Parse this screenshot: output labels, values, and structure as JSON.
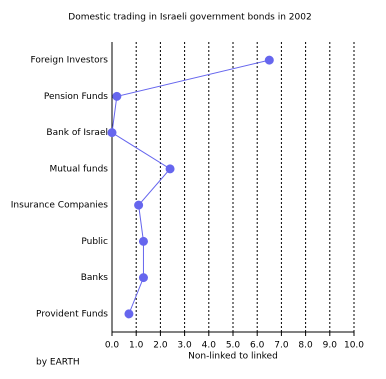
{
  "chart_data": {
    "type": "line",
    "orientation": "horizontal",
    "title": "Domestic trading in Israeli government bonds in 2002",
    "x_label": "Non-linked to linked",
    "source": "by EARTH",
    "categories": [
      "Foreign Investors",
      "Pension Funds",
      "Bank of Israel",
      "Mutual funds",
      "Insurance Companies",
      "Public",
      "Banks",
      "Provident Funds"
    ],
    "values": [
      6.5,
      0.2,
      0.0,
      2.4,
      1.1,
      1.3,
      1.3,
      0.7
    ],
    "color": "#6666ee",
    "xlim": [
      0,
      10
    ],
    "xticks": [
      {
        "value": 0,
        "label": "0.0"
      },
      {
        "value": 1,
        "label": "1.0"
      },
      {
        "value": 2,
        "label": "2.0"
      },
      {
        "value": 3,
        "label": "3.0"
      },
      {
        "value": 4,
        "label": "4.0"
      },
      {
        "value": 5,
        "label": "5.0"
      },
      {
        "value": 6,
        "label": "6.0"
      },
      {
        "value": 7,
        "label": "7.0"
      },
      {
        "value": 8,
        "label": "8.0"
      },
      {
        "value": 9,
        "label": "9.0"
      },
      {
        "value": 10,
        "label": "10.0"
      }
    ],
    "grid": true
  }
}
